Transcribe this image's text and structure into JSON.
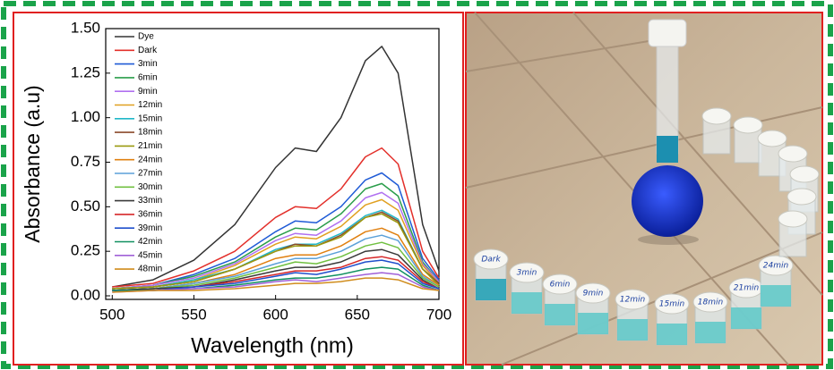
{
  "chart_data": {
    "type": "line",
    "xlabel": "Wavelength (nm)",
    "ylabel": "Absorbance (a.u)",
    "x": [
      500,
      525,
      550,
      575,
      600,
      612,
      625,
      640,
      655,
      665,
      675,
      690,
      700
    ],
    "xlim": [
      496,
      700
    ],
    "ylim": [
      -0.02,
      1.5
    ],
    "xticks": [
      500,
      550,
      600,
      650,
      700
    ],
    "yticks": [
      {
        "value": 0,
        "label": "0.00"
      },
      {
        "value": 0.25,
        "label": "0.25"
      },
      {
        "value": 0.5,
        "label": "0.50"
      },
      {
        "value": 0.75,
        "label": "0.75"
      },
      {
        "value": 1,
        "label": "1.00"
      },
      {
        "value": 1.25,
        "label": "1.25"
      },
      {
        "value": 1.5,
        "label": "1.50"
      }
    ],
    "legend": "upper left",
    "series": [
      {
        "name": "Dye",
        "color": "#333333",
        "values": [
          0.05,
          0.09,
          0.2,
          0.4,
          0.72,
          0.83,
          0.81,
          1.0,
          1.32,
          1.4,
          1.25,
          0.4,
          0.14
        ]
      },
      {
        "name": "Dark",
        "color": "#e3302b",
        "values": [
          0.05,
          0.07,
          0.14,
          0.25,
          0.44,
          0.5,
          0.49,
          0.6,
          0.78,
          0.83,
          0.74,
          0.25,
          0.1
        ]
      },
      {
        "name": "3min",
        "color": "#1f5bd6",
        "values": [
          0.04,
          0.06,
          0.12,
          0.21,
          0.36,
          0.42,
          0.41,
          0.5,
          0.65,
          0.69,
          0.62,
          0.21,
          0.09
        ]
      },
      {
        "name": "6min",
        "color": "#2a9d4a",
        "values": [
          0.04,
          0.06,
          0.11,
          0.19,
          0.33,
          0.38,
          0.37,
          0.46,
          0.6,
          0.63,
          0.56,
          0.19,
          0.08
        ]
      },
      {
        "name": "9min",
        "color": "#b070f0",
        "values": [
          0.04,
          0.06,
          0.1,
          0.18,
          0.31,
          0.35,
          0.34,
          0.42,
          0.55,
          0.58,
          0.52,
          0.18,
          0.08
        ]
      },
      {
        "name": "12min",
        "color": "#e0a020",
        "values": [
          0.04,
          0.05,
          0.09,
          0.17,
          0.29,
          0.33,
          0.32,
          0.39,
          0.51,
          0.54,
          0.48,
          0.17,
          0.07
        ]
      },
      {
        "name": "15min",
        "color": "#20b8c8",
        "values": [
          0.04,
          0.05,
          0.09,
          0.15,
          0.26,
          0.29,
          0.29,
          0.35,
          0.45,
          0.48,
          0.43,
          0.15,
          0.07
        ]
      },
      {
        "name": "18min",
        "color": "#8b4a2b",
        "values": [
          0.04,
          0.05,
          0.08,
          0.15,
          0.25,
          0.29,
          0.28,
          0.34,
          0.44,
          0.47,
          0.42,
          0.15,
          0.07
        ]
      },
      {
        "name": "21min",
        "color": "#9a9a10",
        "values": [
          0.04,
          0.05,
          0.08,
          0.15,
          0.25,
          0.28,
          0.28,
          0.33,
          0.44,
          0.46,
          0.41,
          0.15,
          0.06
        ]
      },
      {
        "name": "24min",
        "color": "#e08010",
        "values": [
          0.03,
          0.04,
          0.07,
          0.12,
          0.21,
          0.23,
          0.23,
          0.28,
          0.36,
          0.38,
          0.34,
          0.12,
          0.06
        ]
      },
      {
        "name": "27min",
        "color": "#5ba0d8",
        "values": [
          0.03,
          0.04,
          0.07,
          0.11,
          0.18,
          0.21,
          0.21,
          0.25,
          0.32,
          0.34,
          0.31,
          0.11,
          0.05
        ]
      },
      {
        "name": "30min",
        "color": "#70c040",
        "values": [
          0.03,
          0.04,
          0.06,
          0.1,
          0.16,
          0.19,
          0.18,
          0.22,
          0.28,
          0.3,
          0.27,
          0.1,
          0.05
        ]
      },
      {
        "name": "33min",
        "color": "#3a3a3a",
        "values": [
          0.03,
          0.04,
          0.05,
          0.09,
          0.14,
          0.16,
          0.16,
          0.19,
          0.25,
          0.26,
          0.23,
          0.09,
          0.04
        ]
      },
      {
        "name": "36min",
        "color": "#d62728",
        "values": [
          0.03,
          0.03,
          0.05,
          0.08,
          0.12,
          0.14,
          0.14,
          0.16,
          0.21,
          0.22,
          0.2,
          0.08,
          0.04
        ]
      },
      {
        "name": "39min",
        "color": "#1f4fcc",
        "values": [
          0.03,
          0.03,
          0.05,
          0.07,
          0.11,
          0.13,
          0.12,
          0.15,
          0.19,
          0.2,
          0.18,
          0.07,
          0.04
        ]
      },
      {
        "name": "42min",
        "color": "#109060",
        "values": [
          0.03,
          0.03,
          0.04,
          0.06,
          0.09,
          0.1,
          0.1,
          0.12,
          0.15,
          0.16,
          0.15,
          0.06,
          0.03
        ]
      },
      {
        "name": "45min",
        "color": "#a060d8",
        "values": [
          0.02,
          0.03,
          0.04,
          0.05,
          0.08,
          0.09,
          0.08,
          0.1,
          0.12,
          0.13,
          0.12,
          0.05,
          0.03
        ]
      },
      {
        "name": "48min",
        "color": "#d08c1c",
        "values": [
          0.02,
          0.03,
          0.03,
          0.04,
          0.06,
          0.07,
          0.07,
          0.08,
          0.1,
          0.1,
          0.09,
          0.04,
          0.03
        ]
      }
    ]
  },
  "photo": {
    "vial_labels": [
      "Dark",
      "3min",
      "6min",
      "9min",
      "12min",
      "15min",
      "18min",
      "21min",
      "24min"
    ]
  }
}
